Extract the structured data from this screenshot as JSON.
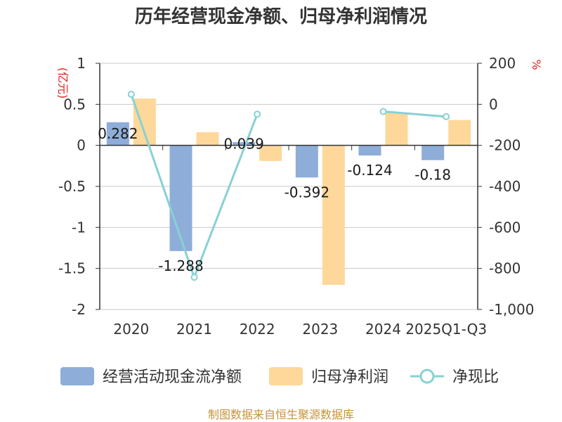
{
  "title": "历年经营现金净额、归母净利润情况",
  "source": "制图数据来自恒生聚源数据库",
  "colors": {
    "cash": "#8eadd9",
    "profit": "#fed89a",
    "ratio": "#88d1d4",
    "unit": "#e01f1f",
    "axis": "#333333",
    "grid": "#c8c8c8"
  },
  "chart_data": {
    "type": "bar+line",
    "title": "历年经营现金净额、归母净利润情况",
    "categories": [
      "2020",
      "2021",
      "2022",
      "2023",
      "2024",
      "2025Q1-Q3"
    ],
    "left_axis": {
      "unit": "(亿元)",
      "range": [
        -2,
        1
      ],
      "ticks": [
        1,
        0.5,
        0,
        -0.5,
        -1,
        -1.5,
        -2
      ],
      "tick_labels": [
        "1",
        "0.5",
        "0",
        "-0.5",
        "-1",
        "-1.5",
        "-2"
      ]
    },
    "right_axis": {
      "unit": "%",
      "range": [
        -1000,
        200
      ],
      "ticks": [
        200,
        0,
        -200,
        -400,
        -600,
        -800,
        -1000
      ],
      "tick_labels": [
        "200",
        "0",
        "-200",
        "-400",
        "-600",
        "-800",
        "-1,000"
      ]
    },
    "series": [
      {
        "name": "经营活动现金流净额",
        "type": "bar",
        "axis": "left",
        "values": [
          0.282,
          -1.288,
          0.039,
          -0.392,
          -0.124,
          -0.18
        ],
        "labels": [
          "0.282",
          "-1.288",
          "0.039",
          "-0.392",
          "-0.124",
          "-0.18"
        ]
      },
      {
        "name": "归母净利润",
        "type": "bar",
        "axis": "left",
        "values": [
          0.57,
          0.16,
          -0.19,
          -1.7,
          0.4,
          0.31
        ]
      },
      {
        "name": "净现比",
        "type": "line",
        "axis": "right",
        "values": [
          49,
          -843,
          -48,
          null,
          -35,
          -60
        ]
      }
    ],
    "legend": [
      "经营活动现金流净额",
      "归母净利润",
      "净现比"
    ],
    "legend_position": "bottom",
    "grid": true
  }
}
